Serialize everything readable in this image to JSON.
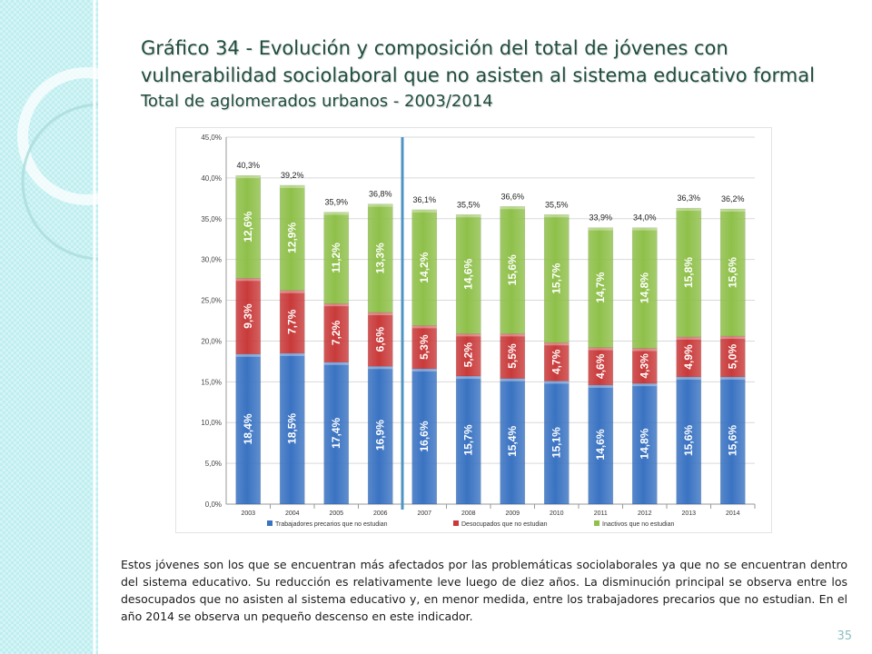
{
  "title": {
    "line1": "Gráfico 34 - Evolución y composición del total de jóvenes con vulnerabilidad sociolaboral que no asisten al sistema educativo formal",
    "line2": "Total de aglomerados urbanos - 2003/2014"
  },
  "body_text": "Estos jóvenes son los que se encuentran más afectados por las problemáticas sociolaborales ya que no se encuentran dentro del sistema educativo.  Su reducción es relativamente leve luego de diez años. La disminución principal se observa entre los desocupados que no asisten al sistema educativo y, en menor medida, entre los trabajadores precarios que no estudian. En el año 2014 se observa un pequeño descenso en este indicador.",
  "page_number": "35",
  "colors": {
    "series": [
      "#3a73c2",
      "#c93a3a",
      "#8fc04a"
    ],
    "divider": "#4f94c4",
    "side_panel": "#bfeef0"
  },
  "chart_data": {
    "type": "bar",
    "stacked": true,
    "categories": [
      "2003",
      "2004",
      "2005",
      "2006",
      "2007",
      "2008",
      "2009",
      "2010",
      "2011",
      "2012",
      "2013",
      "2014"
    ],
    "series": [
      {
        "name": "Trabajadores precarios que no estudian",
        "values": [
          18.4,
          18.5,
          17.4,
          16.9,
          16.6,
          15.7,
          15.4,
          15.1,
          14.6,
          14.8,
          15.6,
          15.6
        ],
        "labels": [
          "18,4%",
          "18,5%",
          "17,4%",
          "16,9%",
          "16,6%",
          "15,7%",
          "15,4%",
          "15,1%",
          "14,6%",
          "14,8%",
          "15,6%",
          "15,6%"
        ]
      },
      {
        "name": "Desocupados que no estudian",
        "values": [
          9.3,
          7.7,
          7.2,
          6.6,
          5.3,
          5.2,
          5.5,
          4.7,
          4.6,
          4.3,
          4.9,
          5.0
        ],
        "labels": [
          "9,3%",
          "7,7%",
          "7,2%",
          "6,6%",
          "5,3%",
          "5,2%",
          "5,5%",
          "4,7%",
          "4,6%",
          "4,3%",
          "4,9%",
          "5,0%"
        ]
      },
      {
        "name": "Inactivos que no estudian",
        "values": [
          12.6,
          12.9,
          11.2,
          13.3,
          14.2,
          14.6,
          15.6,
          15.7,
          14.7,
          14.8,
          15.8,
          15.6
        ],
        "labels": [
          "12,6%",
          "12,9%",
          "11,2%",
          "13,3%",
          "14,2%",
          "14,6%",
          "15,6%",
          "15,7%",
          "14,7%",
          "14,8%",
          "15,8%",
          "15,6%"
        ]
      }
    ],
    "totals": [
      40.3,
      39.2,
      35.9,
      36.8,
      36.1,
      35.5,
      36.6,
      35.5,
      33.9,
      34.0,
      36.3,
      36.2
    ],
    "total_labels": [
      "40,3%",
      "39,2%",
      "35,9%",
      "36,8%",
      "36,1%",
      "35,5%",
      "36,6%",
      "35,5%",
      "33,9%",
      "34,0%",
      "36,3%",
      "36,2%"
    ],
    "ylim": [
      0,
      45
    ],
    "yticks": [
      0,
      5,
      10,
      15,
      20,
      25,
      30,
      35,
      40,
      45
    ],
    "ytick_labels": [
      "0,0%",
      "5,0%",
      "10,0%",
      "15,0%",
      "20,0%",
      "25,0%",
      "30,0%",
      "35,0%",
      "40,0%",
      "45,0%"
    ],
    "divider_after_category": "2006",
    "legend_position": "bottom",
    "grid": true
  }
}
